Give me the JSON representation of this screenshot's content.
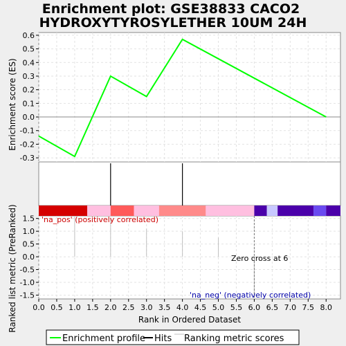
{
  "chart_data": {
    "type": "line",
    "title_line1": "Enrichment plot: GSE38833 CACO2",
    "title_line2": "HYDROXYTYROSYLETHER 10UM 24H",
    "xlabel": "Rank in Ordered Dataset",
    "ylabel_top": "Enrichment score (ES)",
    "ylabel_bottom": "Ranked list metric (PreRanked)",
    "xlim": [
      0,
      8.4
    ],
    "x_ticks": [
      "0.0",
      "0.5",
      "1.0",
      "1.5",
      "2.0",
      "2.5",
      "3.0",
      "3.5",
      "4.0",
      "4.5",
      "5.0",
      "5.5",
      "6.0",
      "6.5",
      "7.0",
      "7.5",
      "8.0"
    ],
    "es_ylim": [
      -0.33,
      0.62
    ],
    "es_ticks": [
      "0.6",
      "0.5",
      "0.4",
      "0.3",
      "0.2",
      "0.1",
      "0.0",
      "-0.1",
      "-0.2",
      "-0.3"
    ],
    "enrichment_profile": {
      "name": "Enrichment profile",
      "color": "#00ff00",
      "x": [
        0,
        1,
        2,
        3,
        4,
        8
      ],
      "y": [
        -0.14,
        -0.29,
        0.3,
        0.15,
        0.57,
        0.0
      ]
    },
    "hits": {
      "name": "Hits",
      "color": "#000000",
      "x": [
        2,
        4
      ]
    },
    "metric_ylim": [
      -1.65,
      1.6
    ],
    "metric_ticks": [
      "1.5",
      "1.0",
      "0.5",
      "0.0",
      "-0.5",
      "-1.0",
      "-1.5"
    ],
    "ranking_metric": {
      "name": "Ranking metric scores",
      "color": "#c0c0c0",
      "x": [
        1,
        2,
        3,
        4,
        5,
        6,
        7,
        8
      ],
      "y": [
        1.6,
        1.5,
        1.1,
        1.0,
        0.75,
        -1.6,
        0.0,
        0.0
      ]
    },
    "color_bar": [
      {
        "x0": 0.0,
        "x1": 1.35,
        "color": "#d50000"
      },
      {
        "x0": 1.35,
        "x1": 2.0,
        "color": "#ffbfe0"
      },
      {
        "x0": 2.0,
        "x1": 2.65,
        "color": "#ff5a5a"
      },
      {
        "x0": 2.65,
        "x1": 3.35,
        "color": "#ffbfe0"
      },
      {
        "x0": 3.35,
        "x1": 4.65,
        "color": "#ff8a8a"
      },
      {
        "x0": 4.65,
        "x1": 6.0,
        "color": "#ffbfe0"
      },
      {
        "x0": 6.0,
        "x1": 6.35,
        "color": "#4b00aa"
      },
      {
        "x0": 6.35,
        "x1": 6.65,
        "color": "#c8c8ff"
      },
      {
        "x0": 6.65,
        "x1": 7.65,
        "color": "#4b00aa"
      },
      {
        "x0": 7.65,
        "x1": 8.0,
        "color": "#6a4af0"
      },
      {
        "x0": 8.0,
        "x1": 8.4,
        "color": "#4b00aa"
      }
    ],
    "zero_cross": 6.0,
    "annotations": {
      "pos": "'na_pos' (positively correlated)",
      "neg": "'na_neg' (negatively correlated)",
      "zero_cross": "Zero cross at 6"
    },
    "colors": {
      "pos_text": "#cc0000",
      "neg_text": "#0000aa"
    },
    "legend": {
      "placement": "bottom",
      "items": [
        "Enrichment profile",
        "Hits",
        "Ranking metric scores"
      ]
    }
  }
}
